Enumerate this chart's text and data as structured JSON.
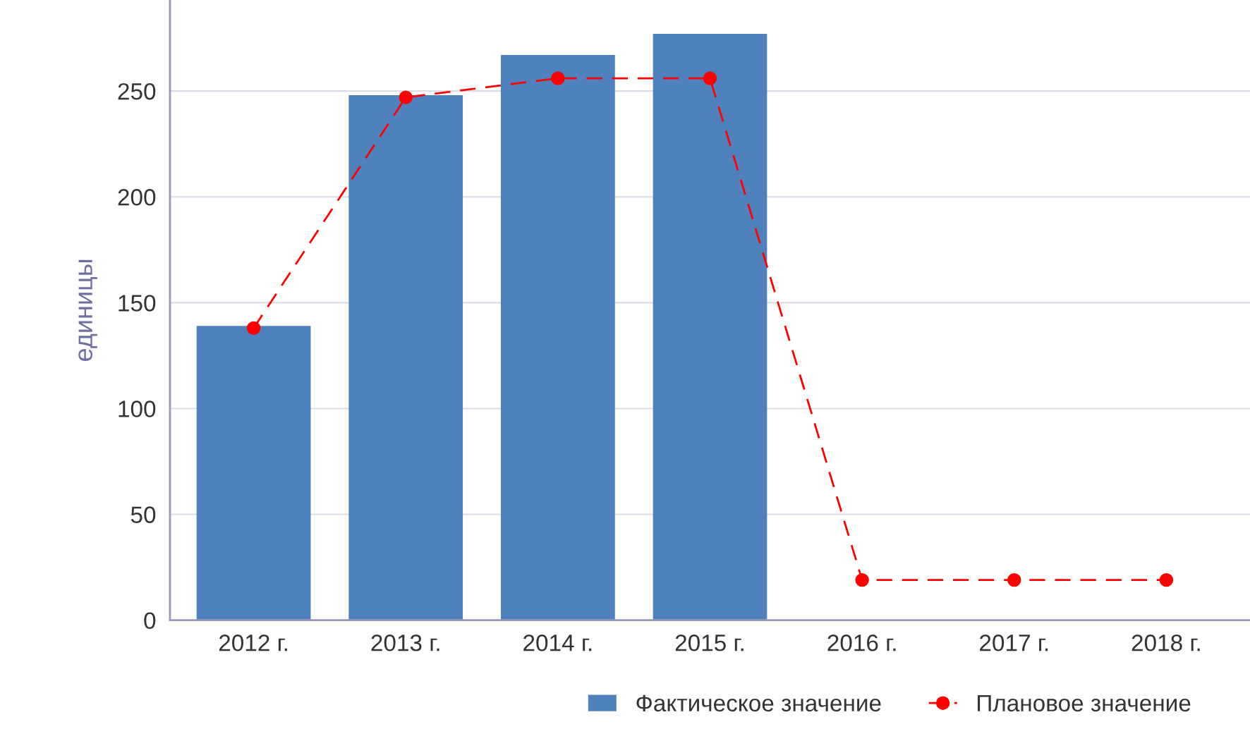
{
  "chart_data": {
    "type": "bar",
    "ylabel": "единицы",
    "categories": [
      "2012 г.",
      "2013 г.",
      "2014 г.",
      "2015 г.",
      "2016 г.",
      "2017 г.",
      "2018 г."
    ],
    "series": [
      {
        "name": "Фактическое значение",
        "color": "#4f81bd",
        "values": [
          139,
          248,
          267,
          277,
          null,
          null,
          null
        ]
      },
      {
        "name": "Плановое значение",
        "type": "line",
        "color": "#ff0000",
        "line_style": "dashed",
        "marker": "circle",
        "values": [
          138,
          247,
          256,
          256,
          19,
          19,
          19
        ]
      }
    ],
    "ylim": [
      0,
      293
    ],
    "yticks": [
      0,
      50,
      100,
      150,
      200,
      250
    ],
    "grid": "y",
    "legend": "bottom right"
  }
}
